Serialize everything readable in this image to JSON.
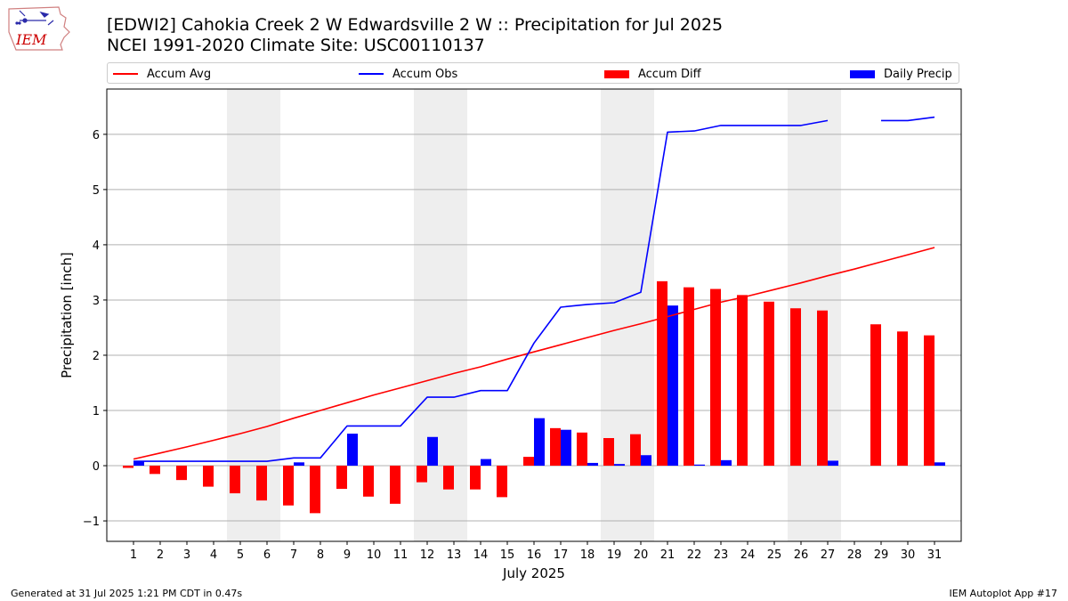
{
  "header": {
    "title_line1": "[EDWI2] Cahokia Creek 2 W Edwardsville 2 W :: Precipitation for Jul 2025",
    "title_line2": "NCEI 1991-2020 Climate Site: USC00110137",
    "logo_text": "IEM"
  },
  "footer": {
    "left": "Generated at 31 Jul 2025 1:21 PM CDT in 0.47s",
    "right": "IEM Autoplot App #17"
  },
  "colors": {
    "accum_avg": "#ff0000",
    "accum_obs": "#0000ff",
    "accum_diff": "#ff0000",
    "daily_precip": "#0000ff",
    "weekend_shade": "#eeeeee",
    "grid": "#b0b0b0"
  },
  "chart_data": {
    "type": "bar",
    "xlabel": "July 2025",
    "ylabel": "Precipitation [inch]",
    "ylim": [
      -1.37,
      6.82
    ],
    "yticks": [
      -1,
      0,
      1,
      2,
      3,
      4,
      5,
      6
    ],
    "ytick_labels": [
      "−1",
      "0",
      "1",
      "2",
      "3",
      "4",
      "5",
      "6"
    ],
    "grid": "horizontal",
    "legend_position": "top",
    "days": [
      1,
      2,
      3,
      4,
      5,
      6,
      7,
      8,
      9,
      10,
      11,
      12,
      13,
      14,
      15,
      16,
      17,
      18,
      19,
      20,
      21,
      22,
      23,
      24,
      25,
      26,
      27,
      28,
      29,
      30,
      31
    ],
    "weekend_spans": [
      [
        5,
        6
      ],
      [
        12,
        13
      ],
      [
        19,
        20
      ],
      [
        26,
        27
      ]
    ],
    "series": [
      {
        "name": "Accum Avg",
        "kind": "line",
        "values": [
          0.12,
          0.23,
          0.34,
          0.46,
          0.58,
          0.71,
          0.86,
          1.0,
          1.14,
          1.28,
          1.41,
          1.54,
          1.67,
          1.79,
          1.93,
          2.06,
          2.19,
          2.32,
          2.45,
          2.57,
          2.7,
          2.83,
          2.96,
          3.07,
          3.19,
          3.31,
          3.44,
          3.56,
          3.69,
          3.82,
          3.95
        ]
      },
      {
        "name": "Accum Obs",
        "kind": "line",
        "values": [
          0.08,
          0.08,
          0.08,
          0.08,
          0.08,
          0.08,
          0.14,
          0.14,
          0.72,
          0.72,
          0.72,
          1.24,
          1.24,
          1.36,
          1.36,
          2.22,
          2.87,
          2.92,
          2.95,
          3.14,
          6.04,
          6.06,
          6.16,
          6.16,
          6.16,
          6.16,
          6.25,
          null,
          6.25,
          6.25,
          6.31
        ]
      },
      {
        "name": "Accum Diff",
        "kind": "bar",
        "values": [
          -0.04,
          -0.15,
          -0.26,
          -0.38,
          -0.5,
          -0.63,
          -0.72,
          -0.86,
          -0.42,
          -0.56,
          -0.69,
          -0.3,
          -0.43,
          -0.43,
          -0.57,
          0.16,
          0.68,
          0.6,
          0.5,
          0.57,
          3.34,
          3.23,
          3.2,
          3.09,
          2.97,
          2.85,
          2.81,
          null,
          2.56,
          2.43,
          2.36
        ]
      },
      {
        "name": "Daily Precip",
        "kind": "bar",
        "values": [
          0.08,
          0,
          0,
          0,
          0,
          0,
          0.06,
          0,
          0.58,
          0,
          0,
          0.52,
          0,
          0.12,
          0,
          0.86,
          0.65,
          0.05,
          0.03,
          0.19,
          2.9,
          0.02,
          0.1,
          0,
          0,
          0,
          0.09,
          null,
          0,
          0,
          0.06
        ]
      }
    ]
  }
}
